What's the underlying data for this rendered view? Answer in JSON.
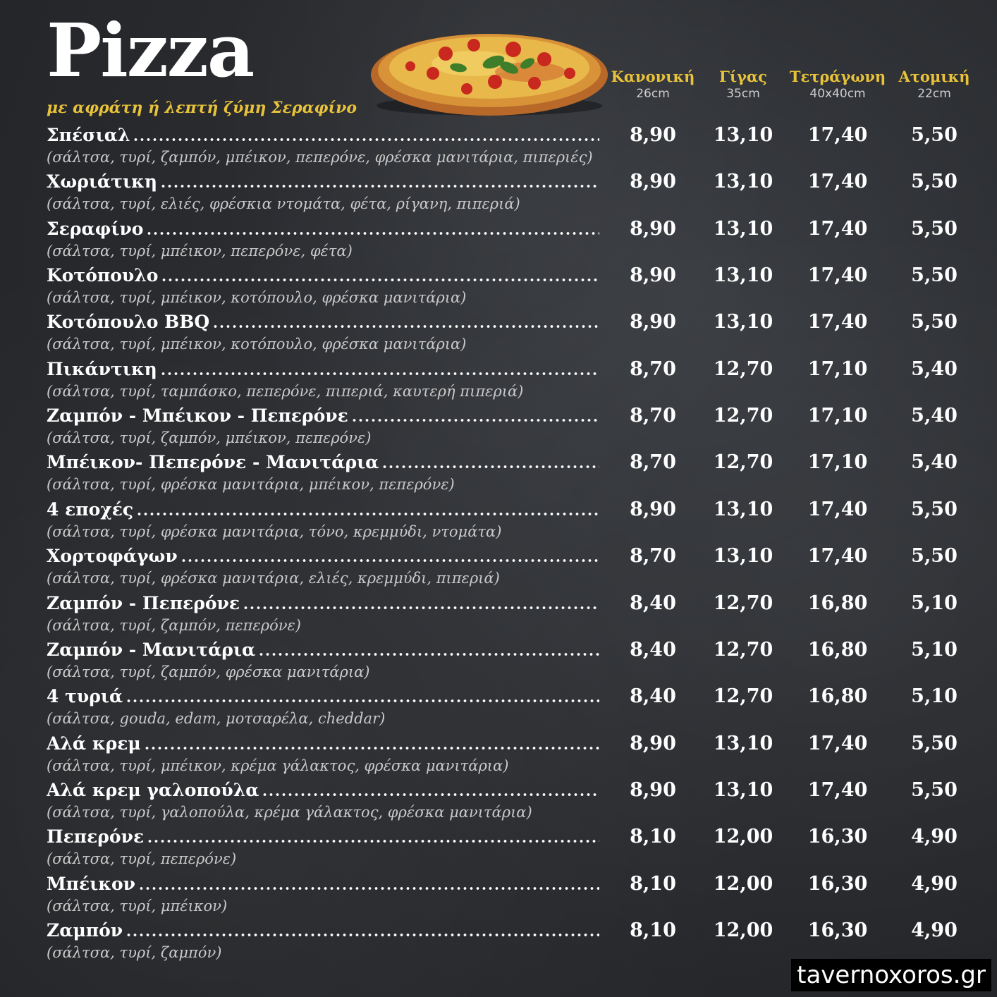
{
  "header": {
    "title": "Pizza",
    "subtitle": "με αφράτη ή λεπτή ζύμη Σεραφίνο"
  },
  "columns": [
    {
      "name": "Κανονική",
      "size": "26cm"
    },
    {
      "name": "Γίγας",
      "size": "35cm"
    },
    {
      "name": "Τετράγωνη",
      "size": "40x40cm"
    },
    {
      "name": "Ατομική",
      "size": "22cm"
    }
  ],
  "items": [
    {
      "name": "Σπέσιαλ",
      "desc": "(σάλτσα, τυρί, ζαμπόν, μπέικον, πεπερόνε, φρέσκα μανιτάρια, πιπεριές)",
      "prices": [
        "8,90",
        "13,10",
        "17,40",
        "5,50"
      ]
    },
    {
      "name": "Χωριάτικη",
      "desc": "(σάλτσα, τυρί, ελιές, φρέσκια ντομάτα, φέτα, ρίγανη, πιπεριά)",
      "prices": [
        "8,90",
        "13,10",
        "17,40",
        "5,50"
      ]
    },
    {
      "name": "Σεραφίνο",
      "desc": "(σάλτσα, τυρί, μπέικον, πεπερόνε, φέτα)",
      "prices": [
        "8,90",
        "13,10",
        "17,40",
        "5,50"
      ]
    },
    {
      "name": "Κοτόπουλο",
      "desc": "(σάλτσα, τυρί, μπέικον, κοτόπουλο, φρέσκα μανιτάρια)",
      "prices": [
        "8,90",
        "13,10",
        "17,40",
        "5,50"
      ]
    },
    {
      "name": "Κοτόπουλο BBQ",
      "desc": "(σάλτσα, τυρί, μπέικον, κοτόπουλο, φρέσκα μανιτάρια)",
      "prices": [
        "8,90",
        "13,10",
        "17,40",
        "5,50"
      ]
    },
    {
      "name": "Πικάντικη",
      "desc": "(σάλτσα, τυρί, ταμπάσκο, πεπερόνε, πιπεριά, καυτερή πιπεριά)",
      "prices": [
        "8,70",
        "12,70",
        "17,10",
        "5,40"
      ]
    },
    {
      "name": "Ζαμπόν - Μπέικον - Πεπερόνε",
      "desc": "(σάλτσα, τυρί, ζαμπόν, μπέικον, πεπερόνε)",
      "prices": [
        "8,70",
        "12,70",
        "17,10",
        "5,40"
      ]
    },
    {
      "name": "Μπέικον- Πεπερόνε - Μανιτάρια",
      "desc": "(σάλτσα, τυρί, φρέσκα μανιτάρια, μπέικον, πεπερόνε)",
      "prices": [
        "8,70",
        "12,70",
        "17,10",
        "5,40"
      ]
    },
    {
      "name": "4 εποχές",
      "desc": "(σάλτσα, τυρί, φρέσκα μανιτάρια, τόνο, κρεμμύδι, ντομάτα)",
      "prices": [
        "8,90",
        "13,10",
        "17,40",
        "5,50"
      ]
    },
    {
      "name": "Χορτοφάγων",
      "desc": "(σάλτσα, τυρί, φρέσκα μανιτάρια, ελιές, κρεμμύδι, πιπεριά)",
      "prices": [
        "8,70",
        "13,10",
        "17,40",
        "5,50"
      ]
    },
    {
      "name": "Ζαμπόν - Πεπερόνε",
      "desc": "(σάλτσα, τυρί, ζαμπόν, πεπερόνε)",
      "prices": [
        "8,40",
        "12,70",
        "16,80",
        "5,10"
      ]
    },
    {
      "name": "Ζαμπόν - Μανιτάρια",
      "desc": "(σάλτσα, τυρί, ζαμπόν, φρέσκα μανιτάρια)",
      "prices": [
        "8,40",
        "12,70",
        "16,80",
        "5,10"
      ]
    },
    {
      "name": "4 τυριά",
      "desc": "(σάλτσα, gouda, edam, μοτσαρέλα, cheddar)",
      "prices": [
        "8,40",
        "12,70",
        "16,80",
        "5,10"
      ]
    },
    {
      "name": "Αλά κρεμ",
      "desc": "(σάλτσα, τυρί, μπέικον, κρέμα γάλακτος, φρέσκα μανιτάρια)",
      "prices": [
        "8,90",
        "13,10",
        "17,40",
        "5,50"
      ]
    },
    {
      "name": "Αλά κρεμ γαλοπούλα",
      "desc": "(σάλτσα, τυρί, γαλοπούλα, κρέμα γάλακτος, φρέσκα μανιτάρια)",
      "prices": [
        "8,90",
        "13,10",
        "17,40",
        "5,50"
      ]
    },
    {
      "name": "Πεπερόνε",
      "desc": "(σάλτσα, τυρί, πεπερόνε)",
      "prices": [
        "8,10",
        "12,00",
        "16,30",
        "4,90"
      ]
    },
    {
      "name": "Μπέικον",
      "desc": "(σάλτσα, τυρί, μπέικον)",
      "prices": [
        "8,10",
        "12,00",
        "16,30",
        "4,90"
      ]
    },
    {
      "name": "Ζαμπόν",
      "desc": "(σάλτσα, τυρί, ζαμπόν)",
      "prices": [
        "8,10",
        "12,00",
        "16,30",
        "4,90"
      ]
    }
  ],
  "watermark": "tavernoxoros.gr",
  "colors": {
    "accent": "#e8c23a",
    "background": "#2a2c30",
    "text": "#ffffff"
  }
}
